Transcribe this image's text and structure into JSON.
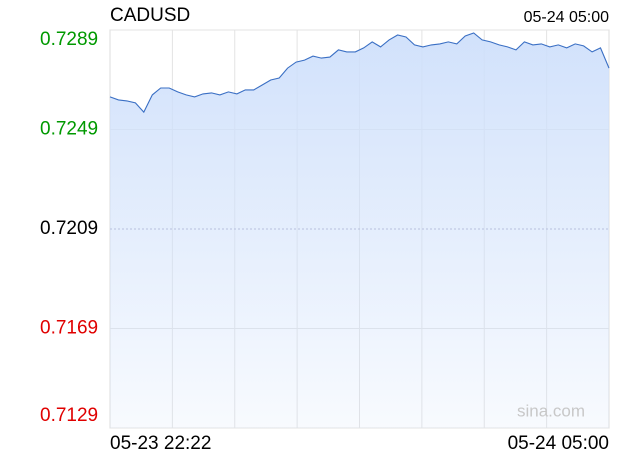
{
  "chart_data": {
    "type": "line",
    "title": "CADUSD",
    "timestamp": "05-24 05:00",
    "watermark": "sina.com",
    "categories": [
      "05-23 22:22",
      null,
      null,
      null,
      null,
      null,
      null,
      null,
      null,
      null,
      null,
      null,
      null,
      null,
      null,
      null,
      null,
      null,
      null,
      null,
      null,
      null,
      null,
      null,
      null,
      null,
      null,
      null,
      null,
      null,
      null,
      null,
      null,
      null,
      null,
      null,
      null,
      null,
      null,
      null,
      null,
      null,
      null,
      null,
      null,
      null,
      null,
      null,
      null,
      null,
      null,
      null,
      null,
      null,
      null,
      null,
      null,
      null,
      null,
      "05-24 05:00"
    ],
    "values": [
      0.72621,
      0.72609,
      0.72605,
      0.72597,
      0.7256,
      0.72629,
      0.72657,
      0.72657,
      0.72641,
      0.72629,
      0.72621,
      0.72633,
      0.72637,
      0.72629,
      0.72641,
      0.72633,
      0.72649,
      0.72649,
      0.72669,
      0.72689,
      0.72697,
      0.72737,
      0.72761,
      0.72769,
      0.72785,
      0.72777,
      0.72781,
      0.7281,
      0.72802,
      0.72802,
      0.72818,
      0.72842,
      0.72822,
      0.7285,
      0.7287,
      0.72862,
      0.7283,
      0.72822,
      0.7283,
      0.72834,
      0.72842,
      0.72834,
      0.72866,
      0.72878,
      0.7285,
      0.72842,
      0.7283,
      0.72822,
      0.7281,
      0.72842,
      0.7283,
      0.72834,
      0.72822,
      0.7283,
      0.72818,
      0.72834,
      0.72826,
      0.72802,
      0.72818,
      0.72737
    ],
    "color": "#3a6fc4",
    "area_color": "#cfe0fb",
    "ylim": [
      0.7129,
      0.7289
    ],
    "yticks": [
      0.7129,
      0.7169,
      0.7209,
      0.7249,
      0.7289
    ],
    "ytick_colors": [
      "#e00000",
      "#e00000",
      "#000000",
      "#009900",
      "#009900"
    ],
    "grid_styles": [
      "solid",
      "solid",
      "dashed",
      "solid",
      "solid"
    ],
    "grid": true
  }
}
